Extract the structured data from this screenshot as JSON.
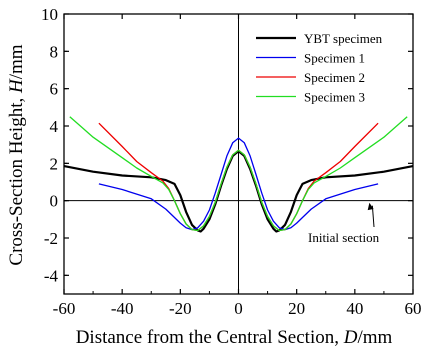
{
  "chart_data": {
    "type": "line",
    "xlabel": "Distance from the Central Section, D/mm",
    "xlabel_prefix": "Distance from the Central Section, ",
    "xlabel_var": "D",
    "xlabel_unit": "/mm",
    "ylabel": "Cross-Section Height, H/mm",
    "ylabel_prefix": "Cross-Section Height, ",
    "ylabel_var": "H",
    "ylabel_unit": "/mm",
    "xlim": [
      -60,
      60
    ],
    "ylim": [
      -5,
      10
    ],
    "xticks": [
      -60,
      -40,
      -20,
      0,
      20,
      40,
      60
    ],
    "yticks": [
      -4,
      -2,
      0,
      2,
      4,
      6,
      8,
      10
    ],
    "grid": false,
    "legend_position": "top-right",
    "annotation": {
      "text": "Initial section",
      "arrow_to": [
        45,
        0
      ]
    },
    "series": [
      {
        "name": "YBT specimen",
        "color": "#000000",
        "x": [
          -60,
          -50,
          -40,
          -30,
          -25,
          -22,
          -20,
          -18,
          -16,
          -14,
          -13,
          -12,
          -10,
          -8,
          -6,
          -4,
          -2,
          0,
          2,
          4,
          6,
          8,
          10,
          12,
          13,
          14,
          16,
          18,
          20,
          22,
          25,
          30,
          40,
          50,
          60
        ],
        "y": [
          1.85,
          1.55,
          1.35,
          1.25,
          1.1,
          0.9,
          0.3,
          -0.6,
          -1.3,
          -1.6,
          -1.65,
          -1.5,
          -1.0,
          -0.2,
          0.8,
          1.7,
          2.4,
          2.65,
          2.4,
          1.7,
          0.8,
          -0.2,
          -1.0,
          -1.5,
          -1.65,
          -1.6,
          -1.3,
          -0.6,
          0.3,
          0.9,
          1.1,
          1.25,
          1.35,
          1.55,
          1.85
        ]
      },
      {
        "name": "Specimen 1",
        "color": "#0000ee",
        "x": [
          -48,
          -40,
          -30,
          -25,
          -22,
          -20,
          -18,
          -16,
          -14,
          -12,
          -10,
          -8,
          -6,
          -4,
          -2,
          0,
          2,
          4,
          6,
          8,
          10,
          12,
          14,
          16,
          18,
          20,
          22,
          25,
          30,
          40,
          48
        ],
        "y": [
          0.9,
          0.6,
          0.1,
          -0.45,
          -0.9,
          -1.2,
          -1.45,
          -1.55,
          -1.45,
          -1.1,
          -0.5,
          0.4,
          1.4,
          2.4,
          3.1,
          3.35,
          3.1,
          2.4,
          1.4,
          0.4,
          -0.5,
          -1.1,
          -1.45,
          -1.55,
          -1.45,
          -1.2,
          -0.9,
          -0.45,
          0.1,
          0.6,
          0.9
        ]
      },
      {
        "name": "Specimen 2",
        "color": "#ee0000",
        "x": [
          -48,
          -40,
          -35,
          -30,
          -26,
          -24,
          -22,
          -20,
          -18,
          -16,
          -14,
          -12,
          -10,
          -8,
          -6,
          -4,
          -2,
          0,
          2,
          4,
          6,
          8,
          10,
          12,
          14,
          16,
          18,
          20,
          22,
          24,
          26,
          30,
          35,
          40,
          48
        ],
        "y": [
          4.15,
          2.9,
          2.1,
          1.5,
          1.05,
          0.65,
          0.0,
          -0.7,
          -1.25,
          -1.55,
          -1.6,
          -1.35,
          -0.85,
          -0.1,
          0.9,
          1.8,
          2.45,
          2.7,
          2.45,
          1.8,
          0.9,
          -0.1,
          -0.85,
          -1.35,
          -1.6,
          -1.55,
          -1.25,
          -0.7,
          0.0,
          0.65,
          1.05,
          1.5,
          2.1,
          2.9,
          4.15
        ]
      },
      {
        "name": "Specimen 3",
        "color": "#22dd22",
        "x": [
          -58,
          -50,
          -40,
          -35,
          -30,
          -26,
          -24,
          -22,
          -20,
          -18,
          -16,
          -14,
          -12,
          -10,
          -8,
          -6,
          -4,
          -2,
          0,
          2,
          4,
          6,
          8,
          10,
          12,
          14,
          16,
          18,
          20,
          22,
          24,
          26,
          30,
          35,
          40,
          50,
          58
        ],
        "y": [
          4.5,
          3.4,
          2.3,
          1.75,
          1.3,
          0.95,
          0.6,
          0.0,
          -0.7,
          -1.25,
          -1.55,
          -1.6,
          -1.35,
          -0.85,
          -0.1,
          0.9,
          1.8,
          2.45,
          2.7,
          2.45,
          1.8,
          0.9,
          -0.1,
          -0.85,
          -1.35,
          -1.6,
          -1.55,
          -1.25,
          -0.7,
          0.0,
          0.6,
          0.95,
          1.3,
          1.75,
          2.3,
          3.4,
          4.5
        ]
      }
    ]
  }
}
